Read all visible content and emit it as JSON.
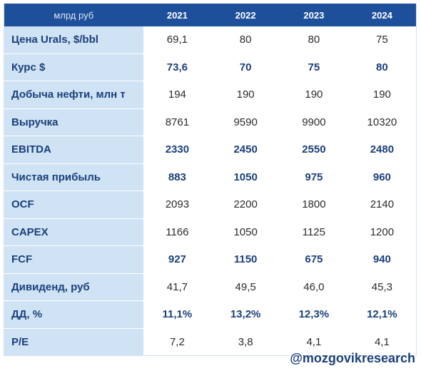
{
  "table": {
    "header_label": "млрд руб",
    "years": [
      "2021",
      "2022",
      "2023",
      "2024"
    ],
    "rows": [
      {
        "label": "Цена Urals, $/bbl",
        "bold": false,
        "values": [
          "69,1",
          "80",
          "80",
          "75"
        ]
      },
      {
        "label": "Курс $",
        "bold": true,
        "values": [
          "73,6",
          "70",
          "75",
          "80"
        ]
      },
      {
        "label": "Добыча нефти, млн т",
        "bold": false,
        "values": [
          "194",
          "190",
          "190",
          "190"
        ]
      },
      {
        "label": "Выручка",
        "bold": false,
        "values": [
          "8761",
          "9590",
          "9900",
          "10320"
        ]
      },
      {
        "label": "EBITDA",
        "bold": true,
        "values": [
          "2330",
          "2450",
          "2550",
          "2480"
        ]
      },
      {
        "label": "Чистая прибыль",
        "bold": true,
        "values": [
          "883",
          "1050",
          "975",
          "960"
        ]
      },
      {
        "label": "OCF",
        "bold": false,
        "values": [
          "2093",
          "2200",
          "1800",
          "2140"
        ]
      },
      {
        "label": "CAPEX",
        "bold": false,
        "values": [
          "1166",
          "1050",
          "1125",
          "1200"
        ]
      },
      {
        "label": "FCF",
        "bold": true,
        "values": [
          "927",
          "1150",
          "675",
          "940"
        ]
      },
      {
        "label": "Дивиденд, руб",
        "bold": false,
        "values": [
          "41,7",
          "49,5",
          "46,0",
          "45,3"
        ]
      },
      {
        "label": "ДД, %",
        "bold": true,
        "values": [
          "11,1%",
          "13,2%",
          "12,3%",
          "12,1%"
        ]
      },
      {
        "label": "P/E",
        "bold": false,
        "values": [
          "7,2",
          "3,8",
          "4,1",
          "4,1"
        ]
      }
    ]
  },
  "footer": {
    "brand": "@mozgovikresearch"
  }
}
